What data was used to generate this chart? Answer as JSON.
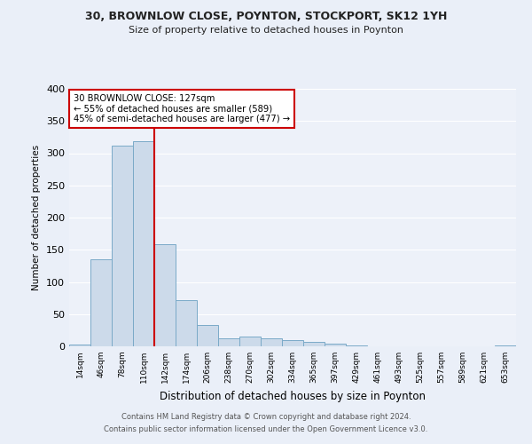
{
  "title1": "30, BROWNLOW CLOSE, POYNTON, STOCKPORT, SK12 1YH",
  "title2": "Size of property relative to detached houses in Poynton",
  "xlabel": "Distribution of detached houses by size in Poynton",
  "ylabel": "Number of detached properties",
  "bar_labels": [
    "14sqm",
    "46sqm",
    "78sqm",
    "110sqm",
    "142sqm",
    "174sqm",
    "206sqm",
    "238sqm",
    "270sqm",
    "302sqm",
    "334sqm",
    "365sqm",
    "397sqm",
    "429sqm",
    "461sqm",
    "493sqm",
    "525sqm",
    "557sqm",
    "589sqm",
    "621sqm",
    "653sqm"
  ],
  "bar_values": [
    3,
    135,
    312,
    318,
    158,
    72,
    33,
    12,
    15,
    12,
    9,
    7,
    4,
    1,
    0,
    0,
    0,
    0,
    0,
    0,
    2
  ],
  "bar_color": "#ccdaea",
  "bar_edge_color": "#7aaac8",
  "marker_color": "#cc0000",
  "ylim": [
    0,
    400
  ],
  "yticks": [
    0,
    50,
    100,
    150,
    200,
    250,
    300,
    350,
    400
  ],
  "annotation_title": "30 BROWNLOW CLOSE: 127sqm",
  "annotation_line1": "← 55% of detached houses are smaller (589)",
  "annotation_line2": "45% of semi-detached houses are larger (477) →",
  "annotation_box_color": "#ffffff",
  "annotation_box_edge": "#cc0000",
  "footer1": "Contains HM Land Registry data © Crown copyright and database right 2024.",
  "footer2": "Contains public sector information licensed under the Open Government Licence v3.0.",
  "bg_color": "#eaeff8",
  "plot_bg_color": "#edf1f9"
}
